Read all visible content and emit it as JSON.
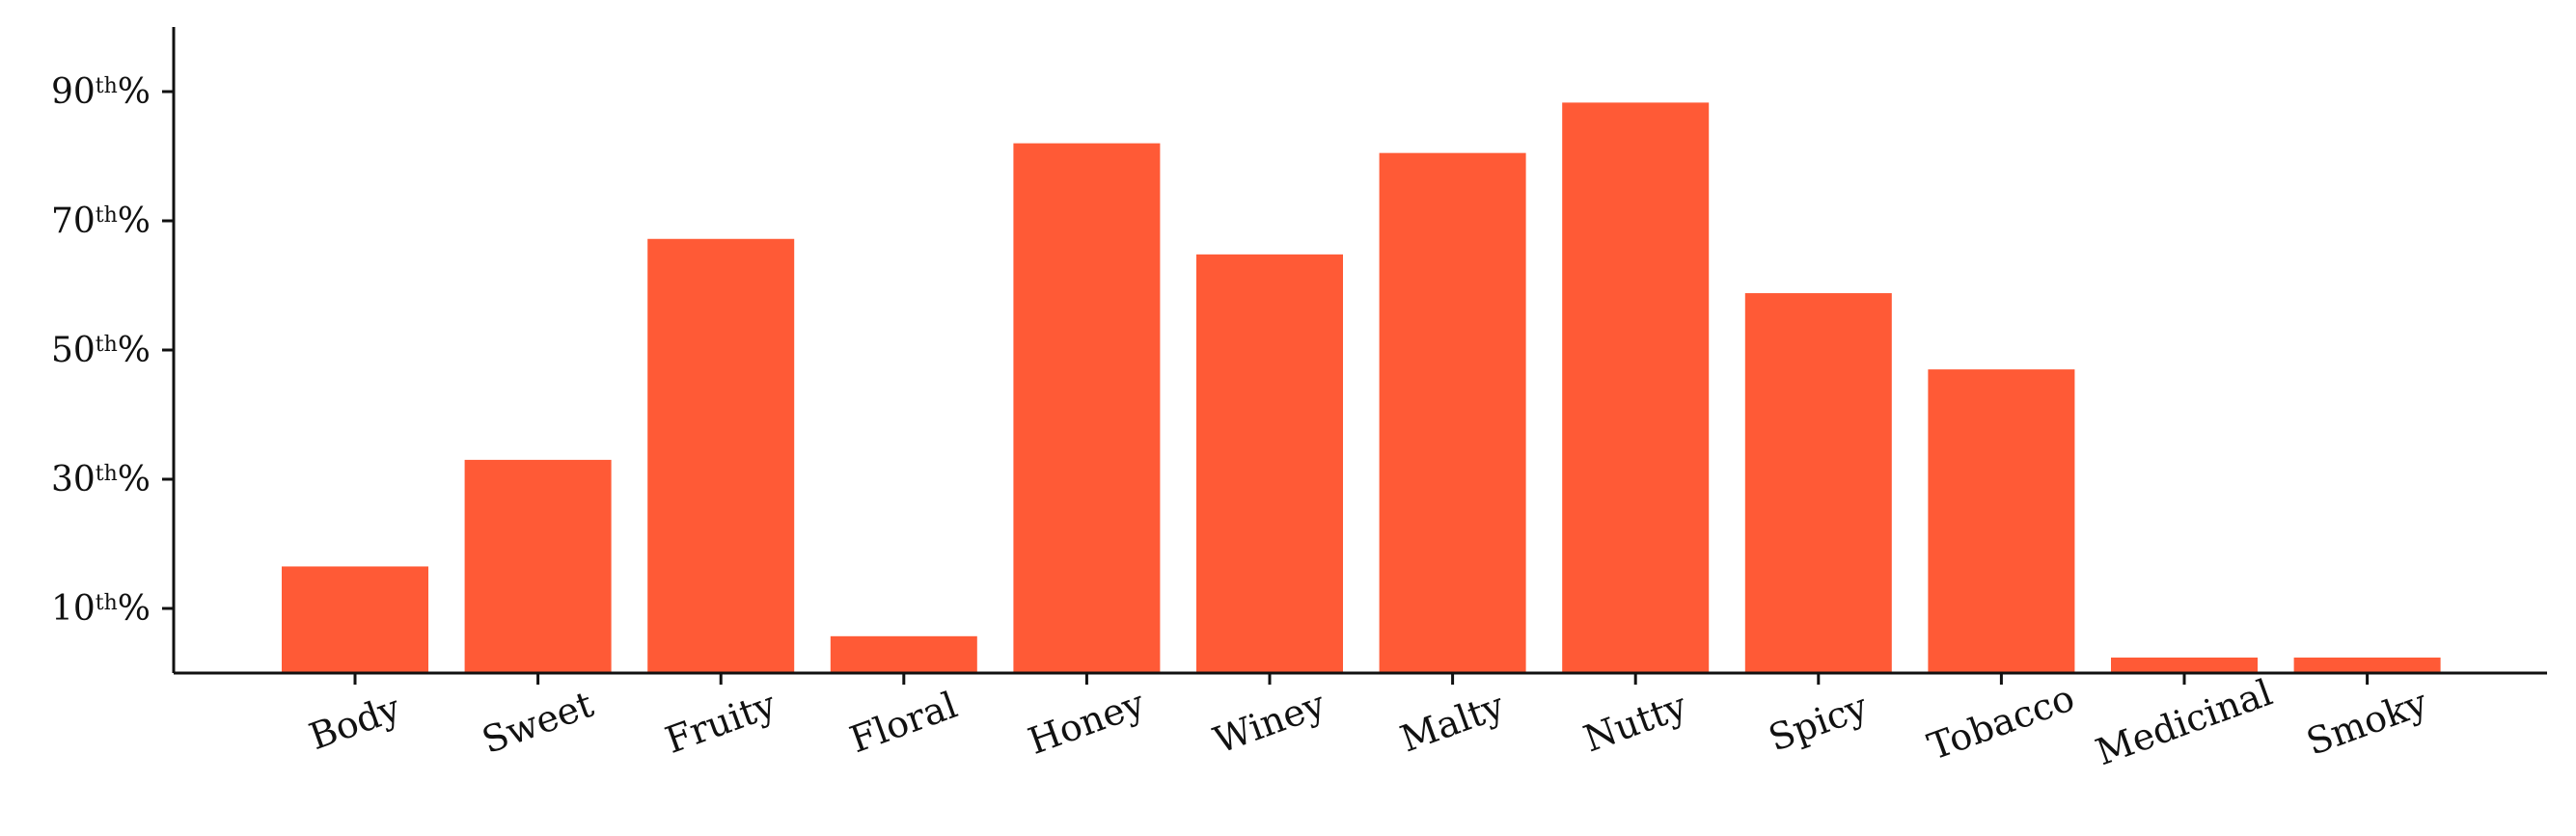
{
  "chart_data": {
    "type": "bar",
    "categories": [
      "Body",
      "Sweet",
      "Fruity",
      "Floral",
      "Honey",
      "Winey",
      "Malty",
      "Nutty",
      "Spicy",
      "Tobacco",
      "Medicinal",
      "Smoky"
    ],
    "values": [
      16.5,
      33.0,
      67.2,
      5.7,
      82.0,
      64.8,
      80.5,
      88.3,
      58.8,
      47.0,
      2.4,
      2.4
    ],
    "yticks": [
      {
        "value": 10,
        "num": "10",
        "sup": "th",
        "suffix": "%"
      },
      {
        "value": 30,
        "num": "30",
        "sup": "th",
        "suffix": "%"
      },
      {
        "value": 50,
        "num": "50",
        "sup": "th",
        "suffix": "%"
      },
      {
        "value": 70,
        "num": "70",
        "sup": "th",
        "suffix": "%"
      },
      {
        "value": 90,
        "num": "90",
        "sup": "th",
        "suffix": "%"
      }
    ],
    "ylim": [
      0,
      100
    ],
    "title": "",
    "xlabel": "",
    "ylabel": "",
    "grid": false,
    "xtick_rotation_deg": -20,
    "bar_color": "#ff5a36",
    "axis_color": "#111111"
  }
}
